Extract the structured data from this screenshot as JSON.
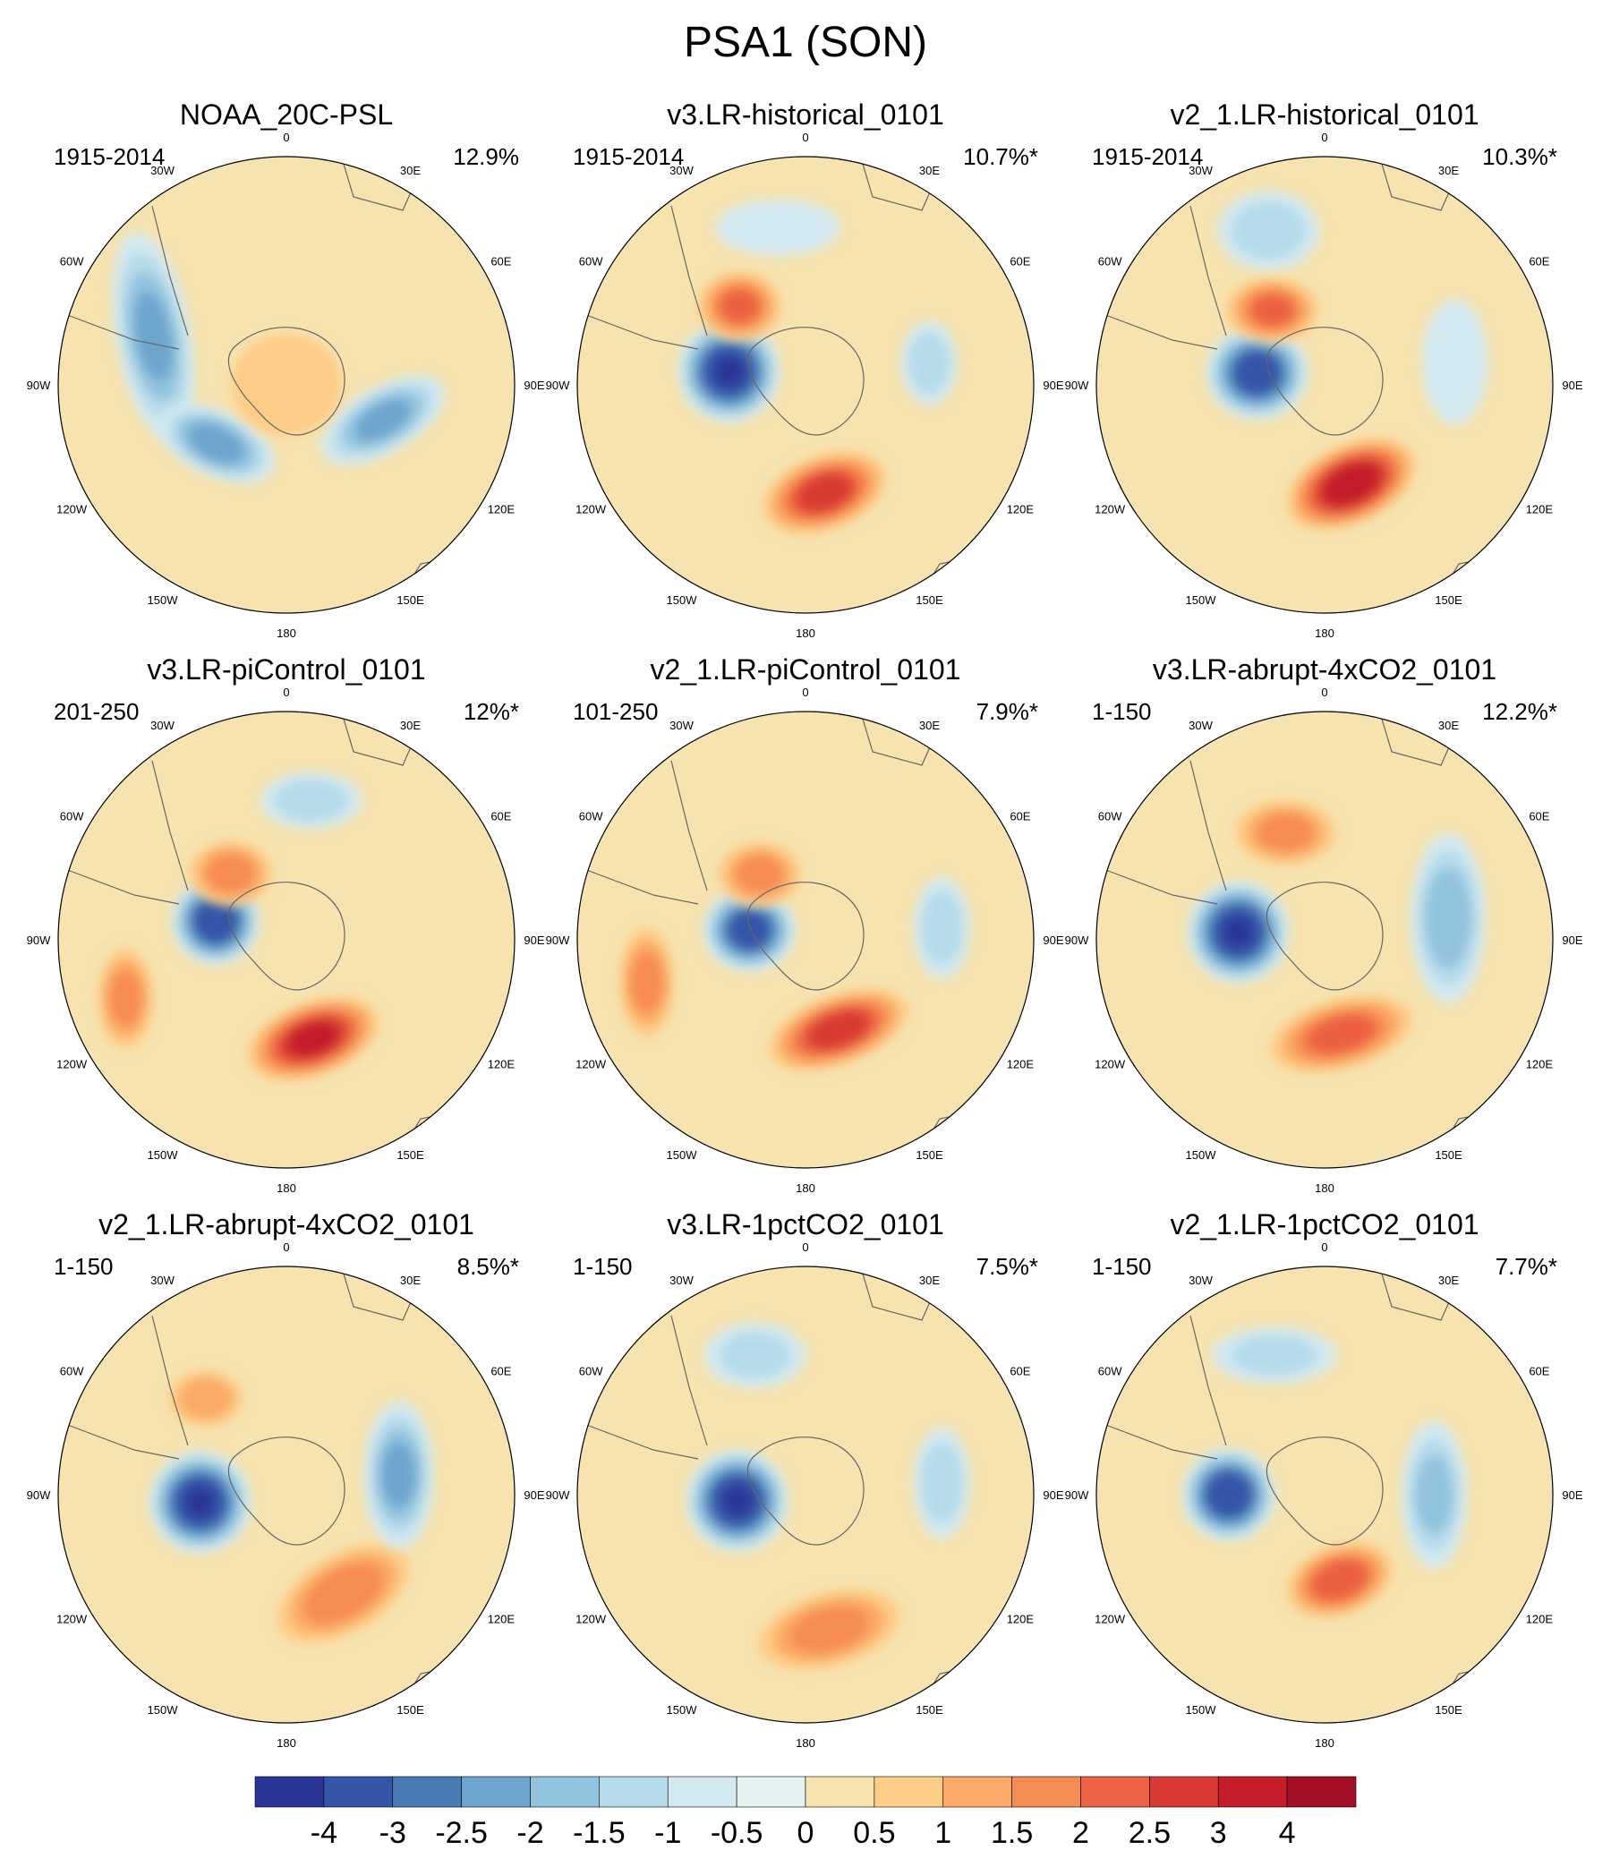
{
  "chart_data": {
    "type": "contour-map-grid",
    "title": "PSA1 (SON)",
    "projection": "south-polar-stereographic",
    "longitude_labels": [
      "0",
      "30E",
      "60E",
      "90E",
      "120E",
      "150E",
      "180",
      "150W",
      "120W",
      "90W",
      "60W",
      "30W"
    ],
    "panels": [
      {
        "name": "NOAA_20C-PSL",
        "period": "1915-2014",
        "variance": "12.9%",
        "features": [
          {
            "lon": -70,
            "dist": 0.62,
            "w": 0.44,
            "h": 0.14,
            "rot": 80,
            "value": -2.0
          },
          {
            "lon": -130,
            "dist": 0.4,
            "w": 0.25,
            "h": 0.12,
            "rot": 25,
            "value": -2.2
          },
          {
            "lon": 110,
            "dist": 0.45,
            "w": 0.28,
            "h": 0.12,
            "rot": -30,
            "value": -2.0
          },
          {
            "lon": 0,
            "dist": 0.0,
            "w": 0.22,
            "h": 0.2,
            "rot": 0,
            "value": 0.6
          }
        ]
      },
      {
        "name": "v3.LR-historical_0101",
        "period": "1915-2014",
        "variance": "10.7%*",
        "features": [
          {
            "lon": -80,
            "dist": 0.34,
            "w": 0.2,
            "h": 0.2,
            "rot": 0,
            "value": -4.0
          },
          {
            "lon": -40,
            "dist": 0.45,
            "w": 0.16,
            "h": 0.13,
            "rot": 0,
            "value": 2.0
          },
          {
            "lon": 170,
            "dist": 0.48,
            "w": 0.26,
            "h": 0.14,
            "rot": -20,
            "value": 2.8
          },
          {
            "lon": 80,
            "dist": 0.55,
            "w": 0.1,
            "h": 0.16,
            "rot": 0,
            "value": -1.2
          },
          {
            "lon": -10,
            "dist": 0.7,
            "w": 0.25,
            "h": 0.1,
            "rot": 0,
            "value": -0.7
          }
        ]
      },
      {
        "name": "v2_1.LR-historical_0101",
        "period": "1915-2014",
        "variance": "10.3%*",
        "features": [
          {
            "lon": -80,
            "dist": 0.3,
            "w": 0.2,
            "h": 0.18,
            "rot": 0,
            "value": -3.6
          },
          {
            "lon": -35,
            "dist": 0.4,
            "w": 0.18,
            "h": 0.12,
            "rot": 0,
            "value": 2.0
          },
          {
            "lon": 165,
            "dist": 0.45,
            "w": 0.28,
            "h": 0.15,
            "rot": -25,
            "value": 3.6
          },
          {
            "lon": -20,
            "dist": 0.72,
            "w": 0.2,
            "h": 0.15,
            "rot": 0,
            "value": -1.2
          },
          {
            "lon": 80,
            "dist": 0.58,
            "w": 0.12,
            "h": 0.25,
            "rot": 0,
            "value": -0.7
          }
        ]
      },
      {
        "name": "v3.LR-piControl_0101",
        "period": "201-250",
        "variance": "12%*",
        "features": [
          {
            "lon": -75,
            "dist": 0.32,
            "w": 0.17,
            "h": 0.17,
            "rot": 0,
            "value": -3.8
          },
          {
            "lon": 165,
            "dist": 0.45,
            "w": 0.28,
            "h": 0.14,
            "rot": -20,
            "value": 3.2
          },
          {
            "lon": -40,
            "dist": 0.38,
            "w": 0.16,
            "h": 0.12,
            "rot": 0,
            "value": 1.6
          },
          {
            "lon": -110,
            "dist": 0.75,
            "w": 0.1,
            "h": 0.2,
            "rot": 0,
            "value": 1.5
          },
          {
            "lon": 10,
            "dist": 0.62,
            "w": 0.2,
            "h": 0.1,
            "rot": 0,
            "value": -1.2
          }
        ]
      },
      {
        "name": "v2_1.LR-piControl_0101",
        "period": "101-250",
        "variance": "7.9%*",
        "features": [
          {
            "lon": -80,
            "dist": 0.25,
            "w": 0.18,
            "h": 0.16,
            "rot": 0,
            "value": -3.5
          },
          {
            "lon": 160,
            "dist": 0.42,
            "w": 0.3,
            "h": 0.13,
            "rot": -20,
            "value": 2.8
          },
          {
            "lon": -35,
            "dist": 0.35,
            "w": 0.16,
            "h": 0.12,
            "rot": 0,
            "value": 1.5
          },
          {
            "lon": -105,
            "dist": 0.72,
            "w": 0.1,
            "h": 0.22,
            "rot": 0,
            "value": 1.5
          },
          {
            "lon": 85,
            "dist": 0.6,
            "w": 0.1,
            "h": 0.2,
            "rot": 0,
            "value": -1.2
          }
        ]
      },
      {
        "name": "v3.LR-abrupt-4xCO2_0101",
        "period": "1-150",
        "variance": "12.2%*",
        "features": [
          {
            "lon": -85,
            "dist": 0.38,
            "w": 0.2,
            "h": 0.2,
            "rot": 0,
            "value": -4.0
          },
          {
            "lon": 170,
            "dist": 0.42,
            "w": 0.3,
            "h": 0.13,
            "rot": -15,
            "value": 2.2
          },
          {
            "lon": 80,
            "dist": 0.55,
            "w": 0.14,
            "h": 0.35,
            "rot": 0,
            "value": -1.8
          },
          {
            "lon": -20,
            "dist": 0.5,
            "w": 0.2,
            "h": 0.12,
            "rot": 0,
            "value": 1.5
          }
        ]
      },
      {
        "name": "v2_1.LR-abrupt-4xCO2_0101",
        "period": "1-150",
        "variance": "8.5%*",
        "features": [
          {
            "lon": -95,
            "dist": 0.38,
            "w": 0.2,
            "h": 0.2,
            "rot": 0,
            "value": -4.0
          },
          {
            "lon": 150,
            "dist": 0.5,
            "w": 0.3,
            "h": 0.15,
            "rot": -30,
            "value": 1.8
          },
          {
            "lon": 80,
            "dist": 0.5,
            "w": 0.13,
            "h": 0.3,
            "rot": 0,
            "value": -2.0
          },
          {
            "lon": -40,
            "dist": 0.55,
            "w": 0.14,
            "h": 0.1,
            "rot": 0,
            "value": 1.2
          }
        ]
      },
      {
        "name": "v3.LR-1pctCO2_0101",
        "period": "1-150",
        "variance": "7.5%*",
        "features": [
          {
            "lon": -95,
            "dist": 0.3,
            "w": 0.2,
            "h": 0.2,
            "rot": 0,
            "value": -4.0
          },
          {
            "lon": 170,
            "dist": 0.6,
            "w": 0.3,
            "h": 0.14,
            "rot": -15,
            "value": 1.6
          },
          {
            "lon": -20,
            "dist": 0.65,
            "w": 0.2,
            "h": 0.12,
            "rot": 0,
            "value": -1.0
          },
          {
            "lon": 85,
            "dist": 0.6,
            "w": 0.1,
            "h": 0.22,
            "rot": 0,
            "value": -1.2
          }
        ]
      },
      {
        "name": "v2_1.LR-1pctCO2_0101",
        "period": "1-150",
        "variance": "7.7%*",
        "features": [
          {
            "lon": -90,
            "dist": 0.42,
            "w": 0.18,
            "h": 0.18,
            "rot": 0,
            "value": -3.8
          },
          {
            "lon": 170,
            "dist": 0.38,
            "w": 0.22,
            "h": 0.13,
            "rot": -20,
            "value": 2.4
          },
          {
            "lon": 90,
            "dist": 0.48,
            "w": 0.12,
            "h": 0.3,
            "rot": 0,
            "value": -1.5
          },
          {
            "lon": -20,
            "dist": 0.65,
            "w": 0.25,
            "h": 0.1,
            "rot": 0,
            "value": -1.0
          }
        ]
      }
    ],
    "colorbar": {
      "tick_labels": [
        "-4",
        "-3",
        "-2.5",
        "-2",
        "-1.5",
        "-1",
        "-0.5",
        "0",
        "0.5",
        "1",
        "1.5",
        "2",
        "2.5",
        "3",
        "4"
      ],
      "levels": [
        -5,
        -4,
        -3,
        -2.5,
        -2,
        -1.5,
        -1,
        -0.5,
        0,
        0.5,
        1,
        1.5,
        2,
        2.5,
        3,
        4,
        5
      ],
      "colors": [
        "#2b3598",
        "#3555a8",
        "#4a7bb6",
        "#6ea5cd",
        "#92c3de",
        "#b5dbea",
        "#d3e9f1",
        "#e6f2f2",
        "#f6e3b0",
        "#fdcd87",
        "#fbab67",
        "#f68b53",
        "#ec6141",
        "#d83a33",
        "#c41d29",
        "#a40e26"
      ]
    }
  }
}
